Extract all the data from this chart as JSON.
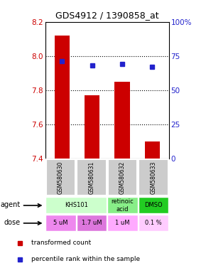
{
  "title": "GDS4912 / 1390858_at",
  "samples": [
    "GSM580630",
    "GSM580631",
    "GSM580632",
    "GSM580633"
  ],
  "bar_values": [
    8.12,
    7.77,
    7.85,
    7.5
  ],
  "bar_bottom": 7.4,
  "percentile_values": [
    71,
    68,
    69,
    67
  ],
  "ylim": [
    7.4,
    8.2
  ],
  "yticks": [
    7.4,
    7.6,
    7.8,
    8.0,
    8.2
  ],
  "right_ytick_labels": [
    "0",
    "25",
    "50",
    "75",
    "100%"
  ],
  "right_ytick_vals": [
    0,
    25,
    50,
    75,
    100
  ],
  "bar_color": "#cc0000",
  "percentile_color": "#2222cc",
  "agent_row": [
    {
      "label": "KHS101",
      "span": [
        0,
        2
      ],
      "color": "#ccffcc"
    },
    {
      "label": "retinoic\nacid",
      "span": [
        2,
        3
      ],
      "color": "#88ee88"
    },
    {
      "label": "DMSO",
      "span": [
        3,
        4
      ],
      "color": "#22cc22"
    }
  ],
  "dose_row": [
    {
      "label": "5 uM",
      "span": [
        0,
        1
      ],
      "color": "#ee88ee"
    },
    {
      "label": "1.7 uM",
      "span": [
        1,
        2
      ],
      "color": "#dd77dd"
    },
    {
      "label": "1 uM",
      "span": [
        2,
        3
      ],
      "color": "#ffaaff"
    },
    {
      "label": "0.1 %",
      "span": [
        3,
        4
      ],
      "color": "#ffccff"
    }
  ],
  "sample_bg_color": "#cccccc",
  "left_label_color": "#cc0000",
  "right_label_color": "#2222cc",
  "legend_red_label": "transformed count",
  "legend_blue_label": "percentile rank within the sample"
}
